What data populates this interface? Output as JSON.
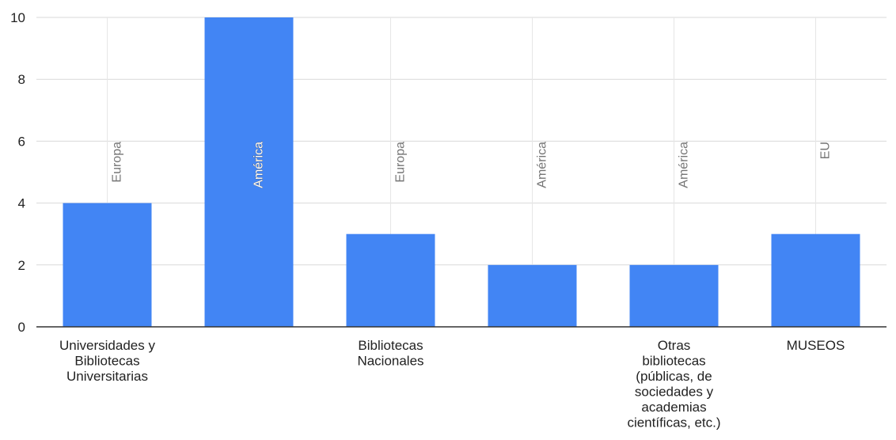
{
  "chart_data": {
    "type": "bar",
    "title": "",
    "xlabel": "",
    "ylabel": "",
    "ylim": [
      0,
      10
    ],
    "yticks": [
      0,
      2,
      4,
      6,
      8,
      10
    ],
    "grid": true,
    "legend": "none",
    "bar_color": "#4285f4",
    "categories": [
      "Universidades y Bibliotecas Universitarias",
      "",
      "Bibliotecas Nacionales",
      "",
      "Otras bibliotecas (públicas, de sociedades y academias científicas, etc.)",
      "MUSEOS"
    ],
    "category_lines": [
      [
        "Universidades y",
        "Bibliotecas",
        "Universitarias"
      ],
      [],
      [
        "Bibliotecas",
        "Nacionales"
      ],
      [],
      [
        "Otras",
        "bibliotecas",
        "(públicas, de",
        "sociedades y",
        "academias",
        "científicas, etc.)"
      ],
      [
        "MUSEOS"
      ]
    ],
    "values": [
      4,
      10,
      3,
      2,
      2,
      3
    ],
    "bar_labels": [
      "Europa",
      "América",
      "Europa",
      "América",
      "América",
      "EU"
    ]
  }
}
